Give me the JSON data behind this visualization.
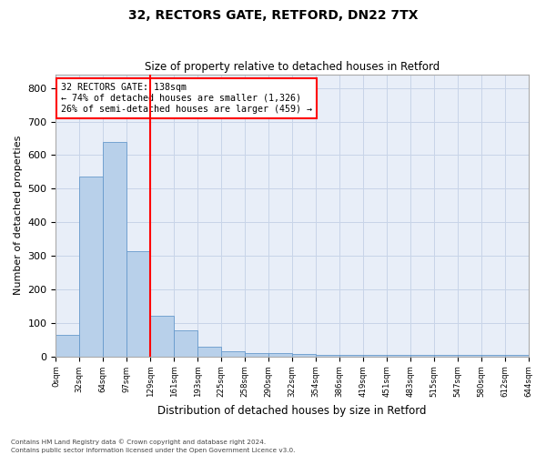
{
  "title1": "32, RECTORS GATE, RETFORD, DN22 7TX",
  "title2": "Size of property relative to detached houses in Retford",
  "xlabel": "Distribution of detached houses by size in Retford",
  "ylabel": "Number of detached properties",
  "footer1": "Contains HM Land Registry data © Crown copyright and database right 2024.",
  "footer2": "Contains public sector information licensed under the Open Government Licence v3.0.",
  "annotation_line1": "32 RECTORS GATE: 138sqm",
  "annotation_line2": "← 74% of detached houses are smaller (1,326)",
  "annotation_line3": "26% of semi-detached houses are larger (459) →",
  "bar_values": [
    65,
    535,
    638,
    313,
    120,
    78,
    28,
    14,
    11,
    10,
    8,
    5,
    5,
    4,
    4,
    3,
    3,
    3,
    3,
    3
  ],
  "bin_labels": [
    "0sqm",
    "32sqm",
    "64sqm",
    "97sqm",
    "129sqm",
    "161sqm",
    "193sqm",
    "225sqm",
    "258sqm",
    "290sqm",
    "322sqm",
    "354sqm",
    "386sqm",
    "419sqm",
    "451sqm",
    "483sqm",
    "515sqm",
    "547sqm",
    "580sqm",
    "612sqm",
    "644sqm"
  ],
  "bar_color": "#b8d0ea",
  "bar_edge_color": "#6699cc",
  "grid_color": "#c8d4e8",
  "background_color": "#e8eef8",
  "vline_color": "red",
  "vline_position": 4.0,
  "annotation_box_color": "red",
  "ylim": [
    0,
    840
  ],
  "yticks": [
    0,
    100,
    200,
    300,
    400,
    500,
    600,
    700,
    800
  ],
  "figsize": [
    6.0,
    5.0
  ],
  "dpi": 100
}
